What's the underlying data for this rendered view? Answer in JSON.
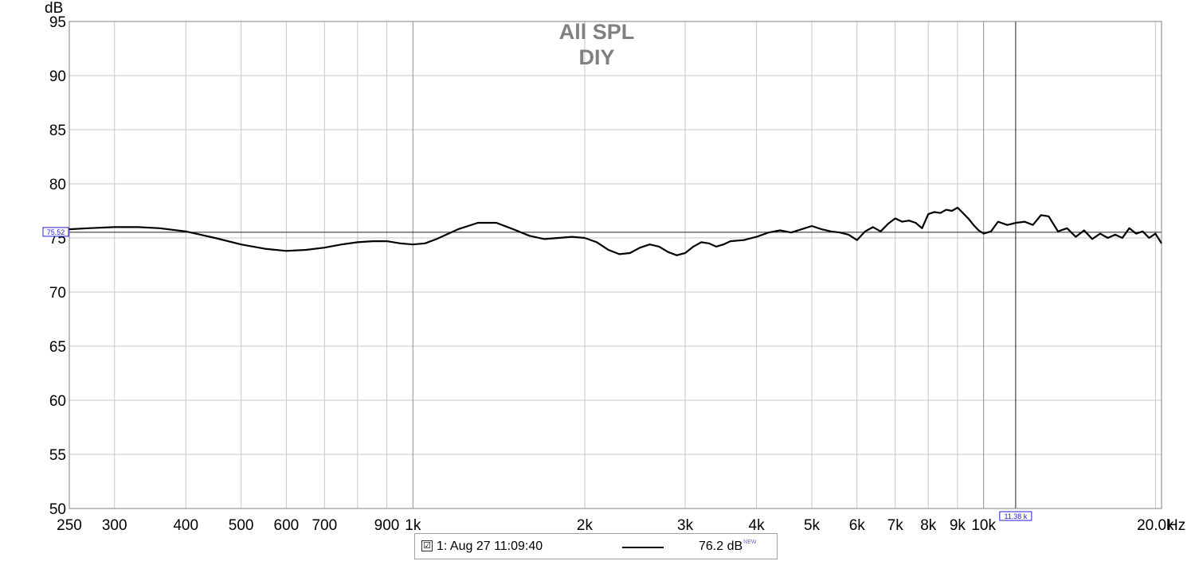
{
  "chart_data": {
    "type": "line",
    "title": "All SPL",
    "subtitle": "DIY",
    "ylabel": "dB",
    "xunit": "Hz",
    "xscale": "log",
    "xlim": [
      250,
      20500
    ],
    "ylim": [
      50,
      95
    ],
    "grid": true,
    "x_ticks": [
      {
        "value": 250,
        "label": "250"
      },
      {
        "value": 300,
        "label": "300"
      },
      {
        "value": 400,
        "label": "400"
      },
      {
        "value": 500,
        "label": "500"
      },
      {
        "value": 600,
        "label": "600"
      },
      {
        "value": 700,
        "label": "700"
      },
      {
        "value": 900,
        "label": "900"
      },
      {
        "value": 1000,
        "label": "1k"
      },
      {
        "value": 2000,
        "label": "2k"
      },
      {
        "value": 3000,
        "label": "3k"
      },
      {
        "value": 4000,
        "label": "4k"
      },
      {
        "value": 5000,
        "label": "5k"
      },
      {
        "value": 6000,
        "label": "6k"
      },
      {
        "value": 7000,
        "label": "7k"
      },
      {
        "value": 8000,
        "label": "8k"
      },
      {
        "value": 9000,
        "label": "9k"
      },
      {
        "value": 10000,
        "label": "10k"
      },
      {
        "value": 20000,
        "label": "20.0k"
      }
    ],
    "y_ticks": [
      50,
      55,
      60,
      65,
      70,
      75,
      80,
      85,
      90,
      95
    ],
    "minor_x_grid": [
      800
    ],
    "cursor": {
      "x": 11380,
      "x_label": "11.38 k",
      "y": 75.52,
      "y_label": "75.52"
    },
    "series": [
      {
        "name": "1: Aug 27 11:09:40",
        "color": "#000000",
        "x": [
          250,
          270,
          300,
          330,
          360,
          400,
          450,
          500,
          550,
          600,
          650,
          700,
          750,
          800,
          850,
          900,
          950,
          1000,
          1050,
          1100,
          1200,
          1300,
          1400,
          1500,
          1600,
          1700,
          1800,
          1900,
          2000,
          2100,
          2200,
          2300,
          2400,
          2500,
          2600,
          2700,
          2800,
          2900,
          3000,
          3100,
          3200,
          3300,
          3400,
          3500,
          3600,
          3800,
          4000,
          4200,
          4400,
          4600,
          4800,
          5000,
          5200,
          5400,
          5600,
          5800,
          6000,
          6200,
          6400,
          6600,
          6800,
          7000,
          7200,
          7400,
          7600,
          7800,
          8000,
          8200,
          8400,
          8600,
          8800,
          9000,
          9200,
          9400,
          9600,
          9800,
          10000,
          10300,
          10600,
          11000,
          11400,
          11800,
          12200,
          12600,
          13000,
          13500,
          14000,
          14500,
          15000,
          15500,
          16000,
          16500,
          17000,
          17500,
          18000,
          18500,
          19000,
          19500,
          20000,
          20500
        ],
        "y": [
          75.8,
          75.9,
          76.0,
          76.0,
          75.9,
          75.6,
          75.0,
          74.4,
          74.0,
          73.8,
          73.9,
          74.1,
          74.4,
          74.6,
          74.7,
          74.7,
          74.5,
          74.4,
          74.5,
          74.9,
          75.8,
          76.4,
          76.4,
          75.8,
          75.2,
          74.9,
          75.0,
          75.1,
          75.0,
          74.6,
          73.9,
          73.5,
          73.6,
          74.1,
          74.4,
          74.2,
          73.7,
          73.4,
          73.6,
          74.2,
          74.6,
          74.5,
          74.2,
          74.4,
          74.7,
          74.8,
          75.1,
          75.5,
          75.7,
          75.5,
          75.8,
          76.1,
          75.8,
          75.6,
          75.5,
          75.3,
          74.8,
          75.6,
          76.0,
          75.6,
          76.3,
          76.8,
          76.5,
          76.6,
          76.4,
          75.9,
          77.2,
          77.4,
          77.3,
          77.6,
          77.5,
          77.8,
          77.3,
          76.8,
          76.2,
          75.7,
          75.4,
          75.6,
          76.5,
          76.2,
          76.4,
          76.5,
          76.2,
          77.1,
          77.0,
          75.6,
          75.9,
          75.1,
          75.7,
          74.9,
          75.4,
          75.0,
          75.3,
          75.0,
          75.9,
          75.4,
          75.6,
          75.0,
          75.4,
          74.5
        ]
      }
    ]
  },
  "legend": {
    "checkbox_glyph": "☑",
    "entry_name": "1: Aug 27 11:09:40",
    "entry_value": "76.2 dB",
    "entry_badge": "NEW"
  },
  "colors": {
    "grid": "#c8c8c8",
    "frame": "#808080",
    "trace": "#000000",
    "cursor": "#202020",
    "marker": "#2222cc",
    "title": "#808080"
  }
}
